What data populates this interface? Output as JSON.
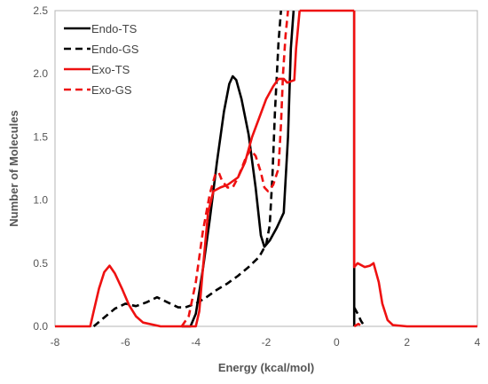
{
  "chart_data": {
    "type": "line",
    "title": "",
    "xlabel": "Energy (kcal/mol)",
    "ylabel": "Number of Molecules",
    "xlim": [
      -8,
      4
    ],
    "ylim": [
      0,
      2.5
    ],
    "xticks": [
      -8,
      -6,
      -4,
      -2,
      0,
      2,
      4
    ],
    "yticks": [
      0.0,
      0.5,
      1.0,
      1.5,
      2.0,
      2.5
    ],
    "ytick_labels": [
      "0.0",
      "0.5",
      "1.0",
      "1.5",
      "2.0",
      "2.5"
    ],
    "grid": false,
    "legend_position": "top-left",
    "series": [
      {
        "name": "Endo-TS",
        "color": "#000000",
        "dash": "solid",
        "points": [
          [
            -4.4,
            0
          ],
          [
            -4.15,
            0.0
          ],
          [
            -4.0,
            0.1
          ],
          [
            -3.8,
            0.45
          ],
          [
            -3.6,
            0.85
          ],
          [
            -3.4,
            1.3
          ],
          [
            -3.2,
            1.7
          ],
          [
            -3.05,
            1.92
          ],
          [
            -2.95,
            1.98
          ],
          [
            -2.85,
            1.95
          ],
          [
            -2.7,
            1.8
          ],
          [
            -2.5,
            1.52
          ],
          [
            -2.3,
            1.1
          ],
          [
            -2.15,
            0.72
          ],
          [
            -2.05,
            0.63
          ],
          [
            -1.9,
            0.68
          ],
          [
            -1.7,
            0.78
          ],
          [
            -1.5,
            0.9
          ],
          [
            -1.38,
            1.5
          ],
          [
            -1.3,
            2.2
          ],
          [
            -1.22,
            2.5
          ]
        ],
        "segments": [
          [
            [
              0.5,
              2.5
            ],
            [
              0.5,
              0.0
            ]
          ]
        ]
      },
      {
        "name": "Endo-GS",
        "color": "#000000",
        "dash": "dashed",
        "points": [
          [
            -6.9,
            0.0
          ],
          [
            -6.6,
            0.07
          ],
          [
            -6.3,
            0.14
          ],
          [
            -6.0,
            0.18
          ],
          [
            -5.7,
            0.16
          ],
          [
            -5.4,
            0.19
          ],
          [
            -5.1,
            0.23
          ],
          [
            -4.8,
            0.19
          ],
          [
            -4.5,
            0.15
          ],
          [
            -4.3,
            0.15
          ],
          [
            -4.0,
            0.18
          ],
          [
            -3.7,
            0.23
          ],
          [
            -3.4,
            0.29
          ],
          [
            -3.1,
            0.34
          ],
          [
            -2.8,
            0.4
          ],
          [
            -2.5,
            0.47
          ],
          [
            -2.2,
            0.55
          ],
          [
            -2.0,
            0.65
          ],
          [
            -1.9,
            0.8
          ],
          [
            -1.82,
            1.2
          ],
          [
            -1.75,
            1.7
          ],
          [
            -1.65,
            2.25
          ],
          [
            -1.58,
            2.5
          ]
        ],
        "segments": [
          [
            [
              0.5,
              0.15
            ],
            [
              0.6,
              0.1
            ],
            [
              0.7,
              0.04
            ],
            [
              0.8,
              0.0
            ]
          ]
        ]
      },
      {
        "name": "Exo-TS",
        "color": "#ee1111",
        "dash": "solid",
        "points": [
          [
            -8.0,
            0.0
          ],
          [
            -7.0,
            0.0
          ],
          [
            -6.9,
            0.12
          ],
          [
            -6.75,
            0.3
          ],
          [
            -6.6,
            0.43
          ],
          [
            -6.45,
            0.48
          ],
          [
            -6.3,
            0.42
          ],
          [
            -6.1,
            0.3
          ],
          [
            -5.9,
            0.17
          ],
          [
            -5.7,
            0.08
          ],
          [
            -5.5,
            0.03
          ],
          [
            -5.0,
            0.0
          ],
          [
            -4.0,
            0.0
          ],
          [
            -3.9,
            0.12
          ],
          [
            -3.8,
            0.45
          ],
          [
            -3.65,
            0.9
          ],
          [
            -3.5,
            1.07
          ],
          [
            -3.3,
            1.1
          ],
          [
            -3.1,
            1.12
          ],
          [
            -2.8,
            1.18
          ],
          [
            -2.6,
            1.3
          ],
          [
            -2.4,
            1.5
          ],
          [
            -2.2,
            1.65
          ],
          [
            -2.0,
            1.8
          ],
          [
            -1.8,
            1.9
          ],
          [
            -1.65,
            1.96
          ],
          [
            -1.5,
            1.96
          ],
          [
            -1.4,
            1.93
          ],
          [
            -1.2,
            1.95
          ],
          [
            -1.15,
            2.2
          ],
          [
            -1.05,
            2.5
          ]
        ],
        "segments": [
          [
            [
              -1.05,
              2.5
            ],
            [
              0.5,
              2.5
            ]
          ],
          [
            [
              0.5,
              2.5
            ],
            [
              0.5,
              0.47
            ],
            [
              0.6,
              0.5
            ],
            [
              0.8,
              0.47
            ],
            [
              0.95,
              0.48
            ],
            [
              1.05,
              0.5
            ],
            [
              1.2,
              0.35
            ],
            [
              1.3,
              0.18
            ],
            [
              1.45,
              0.05
            ],
            [
              1.6,
              0.01
            ],
            [
              2.0,
              0.0
            ],
            [
              4.0,
              0.0
            ]
          ]
        ]
      },
      {
        "name": "Exo-GS",
        "color": "#ee1111",
        "dash": "dashed",
        "points": [
          [
            -4.4,
            0.0
          ],
          [
            -4.2,
            0.08
          ],
          [
            -4.0,
            0.35
          ],
          [
            -3.8,
            0.75
          ],
          [
            -3.6,
            1.05
          ],
          [
            -3.45,
            1.2
          ],
          [
            -3.35,
            1.22
          ],
          [
            -3.25,
            1.15
          ],
          [
            -3.1,
            1.1
          ],
          [
            -2.95,
            1.1
          ],
          [
            -2.8,
            1.18
          ],
          [
            -2.6,
            1.32
          ],
          [
            -2.45,
            1.4
          ],
          [
            -2.3,
            1.35
          ],
          [
            -2.15,
            1.22
          ],
          [
            -2.05,
            1.1
          ],
          [
            -1.95,
            1.07
          ],
          [
            -1.8,
            1.12
          ],
          [
            -1.65,
            1.25
          ],
          [
            -1.58,
            1.6
          ],
          [
            -1.52,
            2.0
          ],
          [
            -1.45,
            2.3
          ],
          [
            -1.38,
            2.5
          ]
        ],
        "segments": [
          [
            [
              0.5,
              0.0
            ],
            [
              0.62,
              0.02
            ],
            [
              0.72,
              0.0
            ]
          ]
        ]
      }
    ]
  }
}
